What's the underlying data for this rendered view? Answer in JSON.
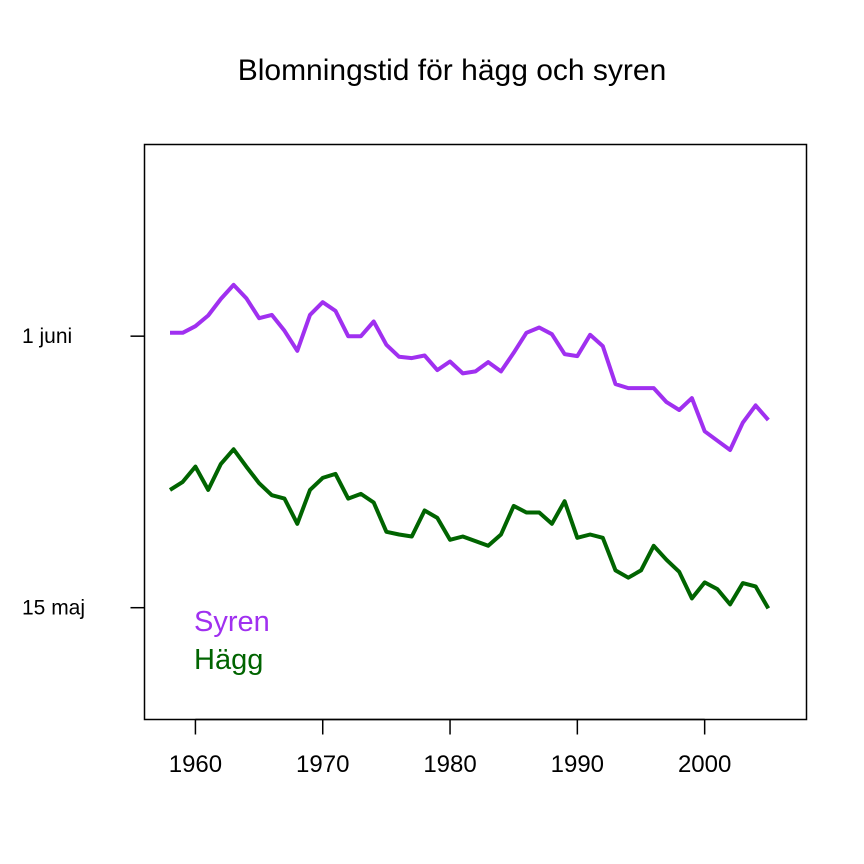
{
  "chart_data": {
    "type": "line",
    "title": "Blomningstid för hägg och syren",
    "xlabel": "",
    "ylabel": "",
    "xlim": [
      1956,
      2008
    ],
    "ylim": [
      "2000-05-08",
      "2000-06-13"
    ],
    "x_ticks": [
      "1960",
      "1970",
      "1980",
      "1990",
      "2000"
    ],
    "y_ticks": [
      {
        "label": "1 juni",
        "date": "2000-06-01"
      },
      {
        "label": "15 maj",
        "date": "2000-05-15"
      }
    ],
    "grid": false,
    "legend": "bottom-left",
    "x": [
      1958,
      1959,
      1960,
      1961,
      1962,
      1963,
      1964,
      1965,
      1966,
      1967,
      1968,
      1969,
      1970,
      1971,
      1972,
      1973,
      1974,
      1975,
      1976,
      1977,
      1978,
      1979,
      1980,
      1981,
      1982,
      1983,
      1984,
      1985,
      1986,
      1987,
      1988,
      1989,
      1990,
      1991,
      1992,
      1993,
      1994,
      1995,
      1996,
      1997,
      1998,
      1999,
      2000,
      2001,
      2002,
      2003,
      2004,
      2005
    ],
    "series": [
      {
        "name": "Syren",
        "color": "#A030F0",
        "values": [
          "2000-06-01T05:00",
          "2000-06-01T05:00",
          "2000-06-01T15:00",
          "2000-06-02T07:00",
          "2000-06-03T08:00",
          "2000-06-04T05:00",
          "2000-06-03T09:00",
          "2000-06-02T03:00",
          "2000-06-02T08:00",
          "2000-06-01T08:00",
          "2000-05-31T02:00",
          "2000-06-02T08:00",
          "2000-06-03T03:00",
          "2000-06-02T14:00",
          "2000-06-01T00:00",
          "2000-06-01T00:00",
          "2000-06-01T22:00",
          "2000-05-31T11:00",
          "2000-05-30T17:00",
          "2000-05-30T15:00",
          "2000-05-30T19:00",
          "2000-05-29T21:00",
          "2000-05-30T10:00",
          "2000-05-29T16:00",
          "2000-05-29T19:00",
          "2000-05-30T09:00",
          "2000-05-29T19:00",
          "2000-05-30T23:00",
          "2000-06-01T05:00",
          "2000-06-01T13:00",
          "2000-06-01T03:00",
          "2000-05-30T21:00",
          "2000-05-30T18:00",
          "2000-06-01T02:00",
          "2000-05-31T09:00",
          "2000-05-29T00:00",
          "2000-05-28T18:00",
          "2000-05-28T18:00",
          "2000-05-28T18:00",
          "2000-05-27T21:00",
          "2000-05-27T09:00",
          "2000-05-28T03:00",
          "2000-05-26T01:00",
          "2000-05-25T11:00",
          "2000-05-24T21:00",
          "2000-05-26T14:00",
          "2000-05-27T16:00",
          "2000-05-26T18:00"
        ]
      },
      {
        "name": "Hägg",
        "color": "#006400",
        "values": [
          "2000-05-22T09:00",
          "2000-05-22T21:00",
          "2000-05-23T20:00",
          "2000-05-22T09:00",
          "2000-05-24T00:00",
          "2000-05-24T22:00",
          "2000-05-23T20:00",
          "2000-05-22T19:00",
          "2000-05-22T01:00",
          "2000-05-21T20:00",
          "2000-05-20T06:00",
          "2000-05-22T09:00",
          "2000-05-23T03:00",
          "2000-05-23T09:00",
          "2000-05-21T20:00",
          "2000-05-22T03:00",
          "2000-05-21T14:00",
          "2000-05-19T18:00",
          "2000-05-19T14:00",
          "2000-05-19T11:00",
          "2000-05-21T02:00",
          "2000-05-20T15:00",
          "2000-05-19T06:00",
          "2000-05-19T11:00",
          "2000-05-19T04:00",
          "2000-05-18T21:00",
          "2000-05-19T14:00",
          "2000-05-21T09:00",
          "2000-05-20T23:00",
          "2000-05-20T23:00",
          "2000-05-20T06:00",
          "2000-05-21T16:00",
          "2000-05-19T09:00",
          "2000-05-19T14:00",
          "2000-05-19T09:00",
          "2000-05-17T08:00",
          "2000-05-16T21:00",
          "2000-05-17T08:00",
          "2000-05-18T21:00",
          "2000-05-18T00:00",
          "2000-05-17T06:00",
          "2000-05-15T14:00",
          "2000-05-16T14:00",
          "2000-05-16T04:00",
          "2000-05-15T05:00",
          "2000-05-16T13:00",
          "2000-05-16T08:00",
          "2000-05-14T23:00"
        ]
      }
    ]
  }
}
